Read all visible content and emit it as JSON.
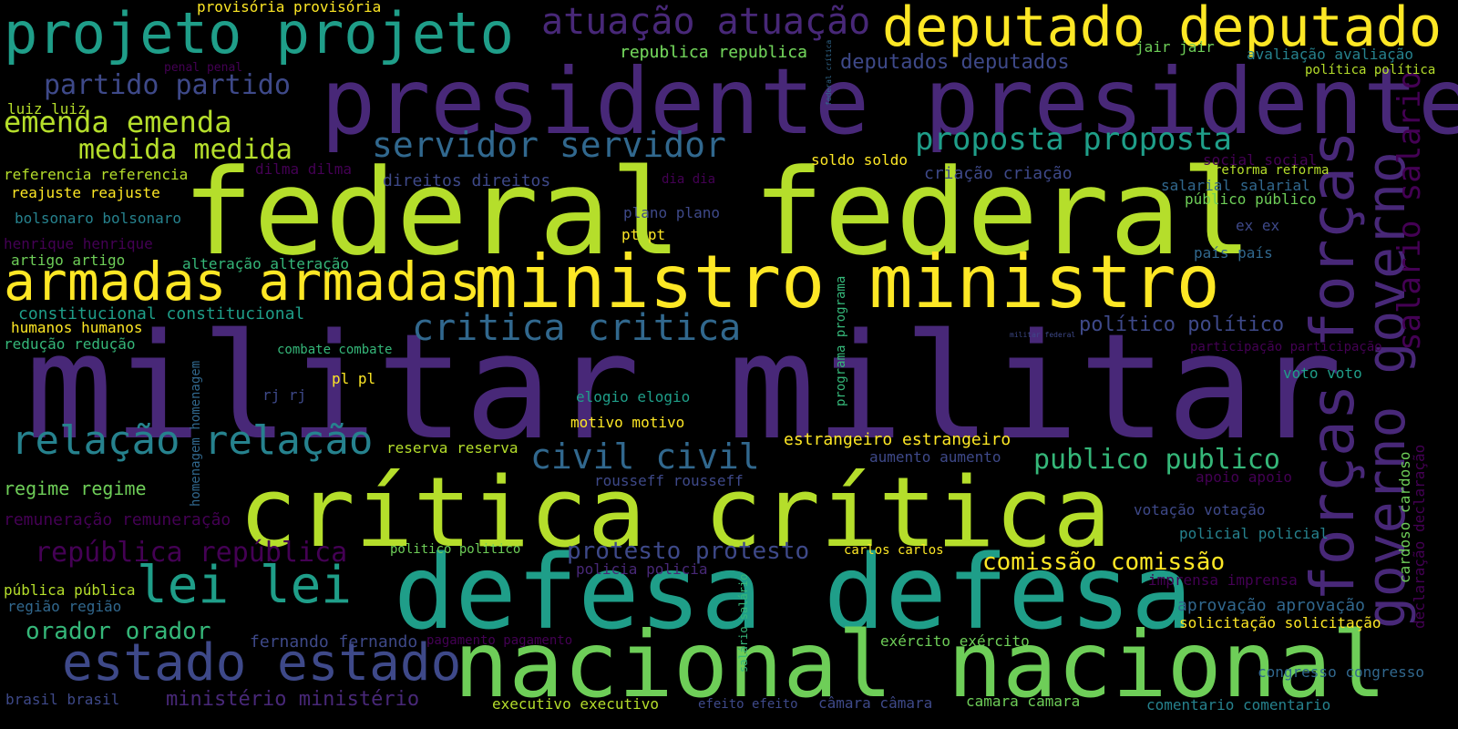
{
  "colors": {
    "background": "#000000",
    "palette": [
      "#440154",
      "#482878",
      "#3e4989",
      "#31688e",
      "#26828e",
      "#1f9e89",
      "#35b779",
      "#6ece58",
      "#b5de2b",
      "#fde725"
    ]
  },
  "words": [
    {
      "id": "militar-militar",
      "text": "militar militar"
    },
    {
      "id": "federal-federal",
      "text": "federal federal"
    },
    {
      "id": "critica-accent",
      "text": "crítica crítica"
    },
    {
      "id": "defesa-defesa",
      "text": "defesa defesa"
    },
    {
      "id": "presidente-presidente",
      "text": "presidente presidente"
    },
    {
      "id": "nacional-nacional",
      "text": "nacional nacional"
    },
    {
      "id": "ministro-ministro",
      "text": "ministro ministro"
    },
    {
      "id": "forcas-forcas",
      "text": "forças forças"
    },
    {
      "id": "governo-governo",
      "text": "governo governo"
    },
    {
      "id": "projeto-projeto",
      "text": "projeto projeto"
    },
    {
      "id": "deputado-deputado",
      "text": "deputado deputado"
    },
    {
      "id": "armadas-armadas",
      "text": "armadas armadas"
    },
    {
      "id": "estado-estado",
      "text": "estado estado"
    },
    {
      "id": "lei-lei",
      "text": "lei lei"
    },
    {
      "id": "relacao-relacao",
      "text": "relação relação"
    },
    {
      "id": "atuacao-atuacao",
      "text": "atuação atuação"
    },
    {
      "id": "critica-noaccent",
      "text": "critica critica"
    },
    {
      "id": "servidor-servidor",
      "text": "servidor servidor"
    },
    {
      "id": "civil-civil",
      "text": "civil civil"
    },
    {
      "id": "proposta-proposta",
      "text": "proposta proposta"
    },
    {
      "id": "salario-salario",
      "text": "salario salario"
    },
    {
      "id": "emenda-emenda",
      "text": "emenda emenda"
    },
    {
      "id": "medida-medida",
      "text": "medida medida"
    },
    {
      "id": "partido-partido",
      "text": "partido partido"
    },
    {
      "id": "republica-accent",
      "text": "república república"
    },
    {
      "id": "publico-publico",
      "text": "publico publico"
    },
    {
      "id": "protesto-protesto",
      "text": "protesto protesto"
    },
    {
      "id": "orador-orador",
      "text": "orador orador"
    },
    {
      "id": "comissao-comissao",
      "text": "comissão comissão"
    },
    {
      "id": "ministerio-ministerio",
      "text": "ministério ministério"
    },
    {
      "id": "deputados-deputados",
      "text": "deputados deputados"
    },
    {
      "id": "politico-politico-accent",
      "text": "político político"
    },
    {
      "id": "regime-regime",
      "text": "regime regime"
    },
    {
      "id": "constitucional-constitucional",
      "text": "constitucional constitucional"
    },
    {
      "id": "provisoria-provisoria",
      "text": "provisória provisória"
    },
    {
      "id": "republica-noaccent",
      "text": "republica republica"
    },
    {
      "id": "estrangeiro-estrangeiro",
      "text": "estrangeiro estrangeiro"
    },
    {
      "id": "remuneracao-remuneracao",
      "text": "remuneração remuneração"
    },
    {
      "id": "fernando-fernando",
      "text": "fernando fernando"
    },
    {
      "id": "executivo-executivo",
      "text": "executivo executivo"
    },
    {
      "id": "camara-accent",
      "text": "câmara câmara"
    },
    {
      "id": "camara-noaccent",
      "text": "camara camara"
    },
    {
      "id": "comentario-comentario",
      "text": "comentario comentario"
    },
    {
      "id": "congresso-congresso",
      "text": "congresso congresso"
    },
    {
      "id": "solicitacao-solicitacao",
      "text": "solicitação solicitação"
    },
    {
      "id": "aprovacao-aprovacao",
      "text": "aprovação aprovação"
    },
    {
      "id": "imprensa-imprensa",
      "text": "imprensa imprensa"
    },
    {
      "id": "policial-policial",
      "text": "policial policial"
    },
    {
      "id": "votacao-votacao",
      "text": "votação votação"
    },
    {
      "id": "apoio-apoio",
      "text": "apoio apoio"
    },
    {
      "id": "voto-voto",
      "text": "voto voto"
    },
    {
      "id": "participacao-participacao",
      "text": "participação participação"
    },
    {
      "id": "pais-pais",
      "text": "país país"
    },
    {
      "id": "ex-ex",
      "text": "ex ex"
    },
    {
      "id": "publico-publico-accent",
      "text": "público público"
    },
    {
      "id": "salarial-salarial",
      "text": "salarial salarial"
    },
    {
      "id": "reforma-reforma",
      "text": "reforma reforma"
    },
    {
      "id": "social-social",
      "text": "social social"
    },
    {
      "id": "criacao-criacao",
      "text": "criação criação"
    },
    {
      "id": "soldo-soldo",
      "text": "soldo soldo"
    },
    {
      "id": "avaliacao-avaliacao",
      "text": "avaliação avaliação"
    },
    {
      "id": "politica-politica",
      "text": "política política"
    },
    {
      "id": "jair-jair",
      "text": "jair jair"
    },
    {
      "id": "republica-small",
      "text": "republica republica"
    },
    {
      "id": "penal-penal",
      "text": "penal penal"
    },
    {
      "id": "luiz-luiz",
      "text": "luiz luiz"
    },
    {
      "id": "referencia-referencia",
      "text": "referencia referencia"
    },
    {
      "id": "reajuste-reajuste",
      "text": "reajuste reajuste"
    },
    {
      "id": "bolsonaro-bolsonaro",
      "text": "bolsonaro bolsonaro"
    },
    {
      "id": "henrique-henrique",
      "text": "henrique henrique"
    },
    {
      "id": "artigo-artigo",
      "text": "artigo artigo"
    },
    {
      "id": "humanos-humanos",
      "text": "humanos humanos"
    },
    {
      "id": "reducao-reducao",
      "text": "redução redução"
    },
    {
      "id": "dilma-dilma",
      "text": "dilma dilma"
    },
    {
      "id": "direitos-direitos",
      "text": "direitos direitos"
    },
    {
      "id": "dia-dia",
      "text": "dia dia"
    },
    {
      "id": "plano-plano",
      "text": "plano plano"
    },
    {
      "id": "pt-pt",
      "text": "pt pt"
    },
    {
      "id": "alteracao-alteracao",
      "text": "alteração alteração"
    },
    {
      "id": "combate-combate",
      "text": "combate combate"
    },
    {
      "id": "pl-pl",
      "text": "pl pl"
    },
    {
      "id": "rj-rj",
      "text": "rj rj"
    },
    {
      "id": "elogio-elogio",
      "text": "elogio elogio"
    },
    {
      "id": "motivo-motivo",
      "text": "motivo motivo"
    },
    {
      "id": "reserva-reserva",
      "text": "reserva reserva"
    },
    {
      "id": "aumento-aumento",
      "text": "aumento aumento"
    },
    {
      "id": "rousseff-rousseff",
      "text": "rousseff rousseff"
    },
    {
      "id": "politico-politico",
      "text": "politico politico"
    },
    {
      "id": "carlos-carlos",
      "text": "carlos carlos"
    },
    {
      "id": "policia-policia",
      "text": "policia policia"
    },
    {
      "id": "publica-publica",
      "text": "pública pública"
    },
    {
      "id": "regiao-regiao",
      "text": "região região"
    },
    {
      "id": "pagamento-pagamento",
      "text": "pagamento pagamento"
    },
    {
      "id": "exercito-exercito",
      "text": "exército exército"
    },
    {
      "id": "brasil-brasil",
      "text": "brasil brasil"
    },
    {
      "id": "efeito-efeito",
      "text": "efeito efeito"
    },
    {
      "id": "homenagem-homenagem",
      "text": "homenagem homenagem"
    },
    {
      "id": "programa-programa",
      "text": "programa programa"
    },
    {
      "id": "salario-salario-accent",
      "text": "salário salário"
    },
    {
      "id": "cardoso-cardoso",
      "text": "cardoso cardoso"
    },
    {
      "id": "declaracao-declaracao",
      "text": "declaração declaração"
    },
    {
      "id": "militar-federal",
      "text": "militar federal"
    },
    {
      "id": "federal-critica",
      "text": "federal crítica"
    }
  ]
}
